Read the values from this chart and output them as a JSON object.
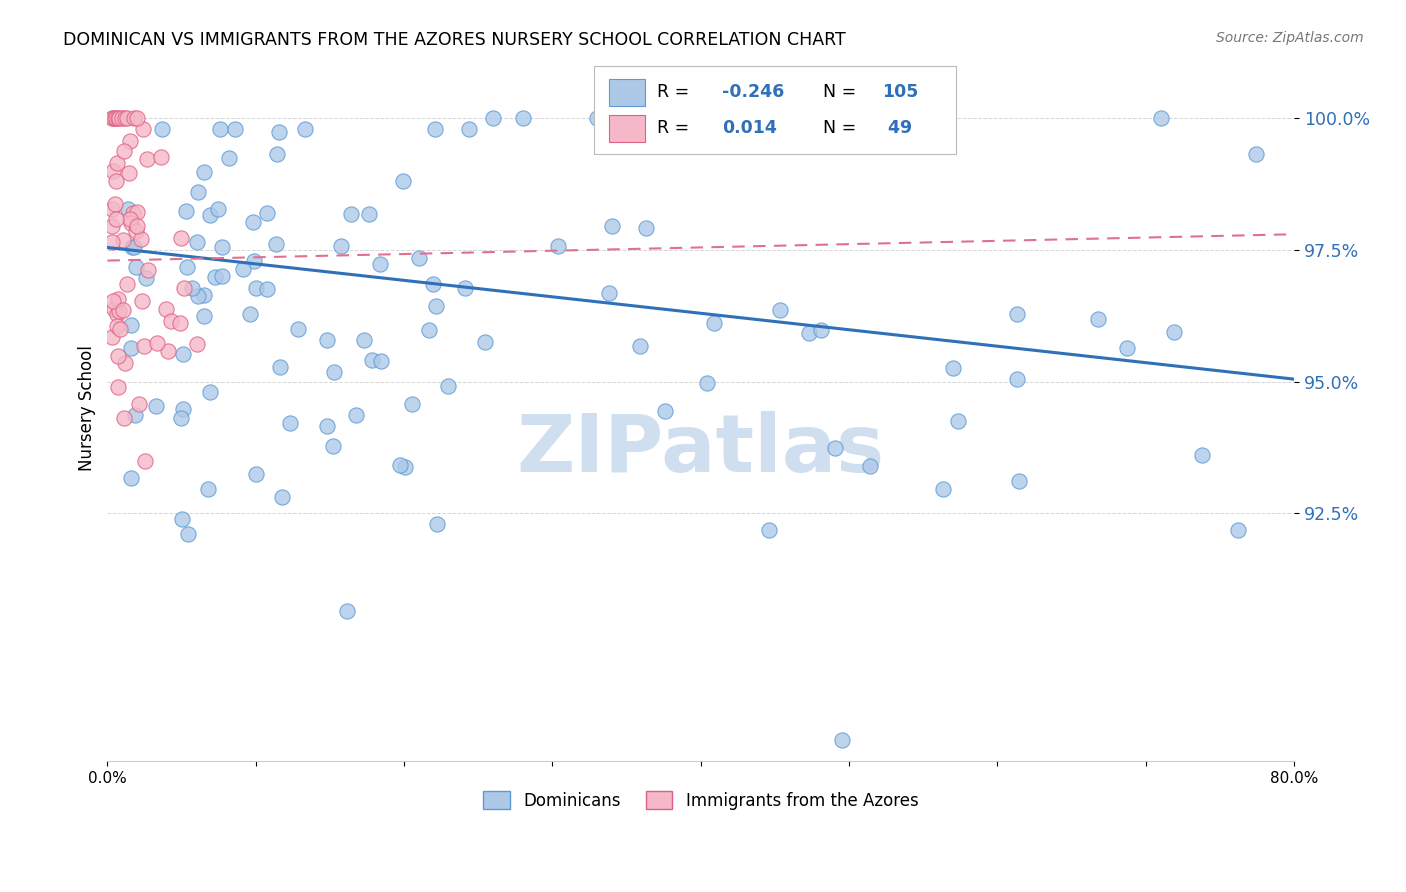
{
  "title": "DOMINICAN VS IMMIGRANTS FROM THE AZORES NURSERY SCHOOL CORRELATION CHART",
  "source": "Source: ZipAtlas.com",
  "ylabel": "Nursery School",
  "ytick_labels": [
    "92.5%",
    "95.0%",
    "97.5%",
    "100.0%"
  ],
  "ytick_values": [
    0.925,
    0.95,
    0.975,
    1.0
  ],
  "legend_blue_label": "Dominicans",
  "legend_pink_label": "Immigrants from the Azores",
  "R_blue": -0.246,
  "N_blue": 105,
  "R_pink": 0.014,
  "N_pink": 49,
  "blue_fill": "#aec8e8",
  "blue_edge": "#5b9bd5",
  "pink_fill": "#f4b8c8",
  "pink_edge": "#e06080",
  "blue_line_color": "#3070b8",
  "pink_line_color": "#e07090",
  "watermark_color": "#d0dff0",
  "xmin": 0.0,
  "xmax": 0.8,
  "ymin": 0.878,
  "ymax": 1.012,
  "blue_trend_y0": 0.9755,
  "blue_trend_y1": 0.9505,
  "pink_trend_y0": 0.973,
  "pink_trend_y1": 0.978,
  "grid_color": "#cccccc",
  "spine_color": "#cccccc",
  "ytick_color": "#3070b8",
  "source_color": "#777777"
}
